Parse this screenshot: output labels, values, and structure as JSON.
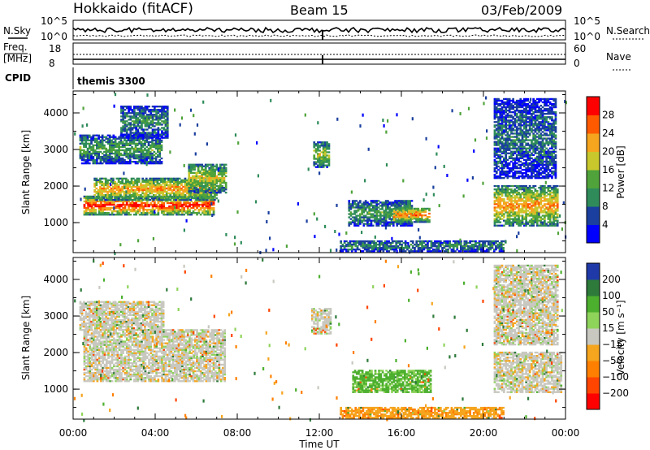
{
  "header": {
    "station": "Hokkaido (fitACF)",
    "beam": "Beam 15",
    "date": "03/Feb/2009"
  },
  "nsky_panel": {
    "left_label": "N.Sky",
    "left_ticks": [
      "10^5",
      "10^0"
    ],
    "right_label": "N.Search",
    "right_ticks": [
      "10^5",
      "10^0"
    ]
  },
  "freq_panel": {
    "left_label_1": "Freq.",
    "left_label_2": "[MHz]",
    "left_ticks": [
      "18",
      "8"
    ],
    "right_label": "Nave",
    "right_ticks": [
      "60",
      "0"
    ]
  },
  "cpid_panel": {
    "label": "CPID",
    "value": "themis 3300"
  },
  "chart_data": [
    {
      "type": "heatmap",
      "parameter": "Power",
      "ylabel": "Slant Range [km]",
      "yticks": [
        "1000",
        "2000",
        "3000",
        "4000"
      ],
      "ylim": [
        180,
        4600
      ],
      "xlim": [
        0,
        24
      ],
      "colorbar_label": "Power [dB]",
      "colorbar_ticks": [
        "4",
        "8",
        "12",
        "16",
        "20",
        "24",
        "28"
      ],
      "colorbar_colors": [
        "#0000ff",
        "#1a3f9e",
        "#2f8c5a",
        "#4fa33a",
        "#c8c82d",
        "#f5a51e",
        "#ff5a00",
        "#ff0000"
      ],
      "regions": [
        {
          "t": [
            0.5,
            6.8
          ],
          "r": [
            1200,
            1700
          ],
          "level": 28
        },
        {
          "t": [
            1.0,
            7.0
          ],
          "r": [
            1600,
            2200
          ],
          "level": 22
        },
        {
          "t": [
            5.6,
            7.4
          ],
          "r": [
            1800,
            2600
          ],
          "level": 18
        },
        {
          "t": [
            0.3,
            4.3
          ],
          "r": [
            2600,
            3400
          ],
          "level": 12
        },
        {
          "t": [
            2.3,
            4.6
          ],
          "r": [
            3300,
            4200
          ],
          "level": 10
        },
        {
          "t": [
            11.7,
            12.5
          ],
          "r": [
            2500,
            3200
          ],
          "level": 16
        },
        {
          "t": [
            13.4,
            16.5
          ],
          "r": [
            900,
            1600
          ],
          "level": 12
        },
        {
          "t": [
            15.6,
            17.4
          ],
          "r": [
            1000,
            1400
          ],
          "level": 24
        },
        {
          "t": [
            13.0,
            21.0
          ],
          "r": [
            200,
            500
          ],
          "level": 10
        },
        {
          "t": [
            20.5,
            23.6
          ],
          "r": [
            900,
            2000
          ],
          "level": 22
        },
        {
          "t": [
            20.5,
            23.5
          ],
          "r": [
            2200,
            4400
          ],
          "level": 8
        }
      ]
    },
    {
      "type": "heatmap",
      "parameter": "Velocity",
      "ylabel": "Slant Range [km]",
      "yticks": [
        "1000",
        "2000",
        "3000",
        "4000"
      ],
      "ylim": [
        180,
        4600
      ],
      "xlabel": "Time UT",
      "xticks": [
        "00:00",
        "04:00",
        "08:00",
        "12:00",
        "16:00",
        "20:00",
        "00:00"
      ],
      "xlim": [
        0,
        24
      ],
      "colorbar_label": "Velocity [m s⁻¹]",
      "colorbar_ticks": [
        "200",
        "100",
        "50",
        "15",
        "−15",
        "−50",
        "−100",
        "−200"
      ],
      "colorbar_colors": [
        "#1f3aa8",
        "#2d7a3a",
        "#4caf2e",
        "#8ed35a",
        "#c8c8c0",
        "#f5a51e",
        "#ff8000",
        "#ff4500",
        "#ff0000"
      ],
      "regions": [
        {
          "t": [
            0.5,
            7.4
          ],
          "r": [
            1200,
            2600
          ],
          "v": 0
        },
        {
          "t": [
            0.3,
            4.4
          ],
          "r": [
            2600,
            3400
          ],
          "v": 0
        },
        {
          "t": [
            11.6,
            12.5
          ],
          "r": [
            2500,
            3200
          ],
          "v": 0
        },
        {
          "t": [
            13.6,
            17.4
          ],
          "r": [
            900,
            1500
          ],
          "v": 60
        },
        {
          "t": [
            13.0,
            21.0
          ],
          "r": [
            200,
            500
          ],
          "v": -40
        },
        {
          "t": [
            20.5,
            23.8
          ],
          "r": [
            900,
            2000
          ],
          "v": 0
        },
        {
          "t": [
            20.5,
            23.6
          ],
          "r": [
            2200,
            4400
          ],
          "v": 0
        }
      ]
    }
  ]
}
